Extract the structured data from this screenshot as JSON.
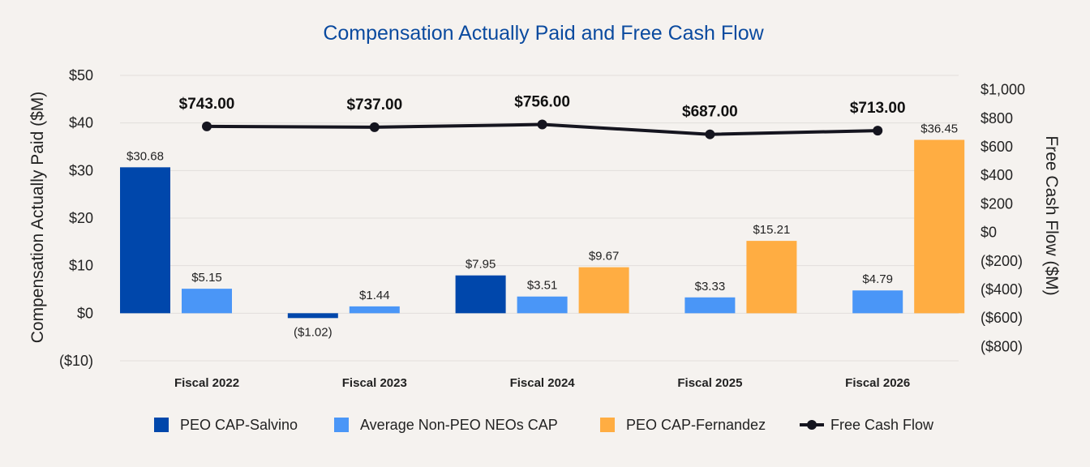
{
  "chart_data": {
    "type": "bar",
    "title": "Compensation Actually Paid and Free Cash Flow",
    "categories": [
      "Fiscal 2022",
      "Fiscal 2023",
      "Fiscal 2024",
      "Fiscal 2025",
      "Fiscal 2026"
    ],
    "series": [
      {
        "name": "PEO CAP-Salvino",
        "axis": "left",
        "color": "#0047ab",
        "values": [
          30.68,
          -1.02,
          7.95,
          null,
          null
        ],
        "labels": [
          "$30.68",
          "($1.02)",
          "$7.95",
          "",
          ""
        ]
      },
      {
        "name": "Average Non-PEO NEOs CAP",
        "axis": "left",
        "color": "#4a96f7",
        "values": [
          5.15,
          1.44,
          3.51,
          3.33,
          4.79
        ],
        "labels": [
          "$5.15",
          "$1.44",
          "$3.51",
          "$3.33",
          "$4.79"
        ]
      },
      {
        "name": "PEO CAP-Fernandez",
        "axis": "left",
        "color": "#ffad42",
        "values": [
          null,
          null,
          9.67,
          15.21,
          36.45
        ],
        "labels": [
          "",
          "",
          "$9.67",
          "$15.21",
          "$36.45"
        ]
      },
      {
        "name": "Free Cash Flow",
        "axis": "right",
        "type": "line",
        "color": "#15151f",
        "values": [
          743.0,
          737.0,
          756.0,
          687.0,
          713.0
        ],
        "labels": [
          "$743.00",
          "$737.00",
          "$756.00",
          "$687.00",
          "$713.00"
        ]
      }
    ],
    "ylabel": "Compensation Actually Paid ($M)",
    "ylim": [
      -10,
      50
    ],
    "yticks": [
      50,
      40,
      30,
      20,
      10,
      0,
      -10
    ],
    "ytick_labels": [
      "$50",
      "$40",
      "$30",
      "$20",
      "$10",
      "$0",
      "($10)"
    ],
    "y2label": "Free Cash Flow ($M)",
    "y2lim": [
      -900,
      1100
    ],
    "y2ticks": [
      1000,
      800,
      600,
      400,
      200,
      0,
      -200,
      -400,
      -600,
      -800
    ],
    "y2tick_labels": [
      "$1,000",
      "$800",
      "$600",
      "$400",
      "$200",
      "$0",
      "($200)",
      "($400)",
      "($600)",
      "($800)"
    ],
    "grid": true,
    "legend": "bottom"
  }
}
